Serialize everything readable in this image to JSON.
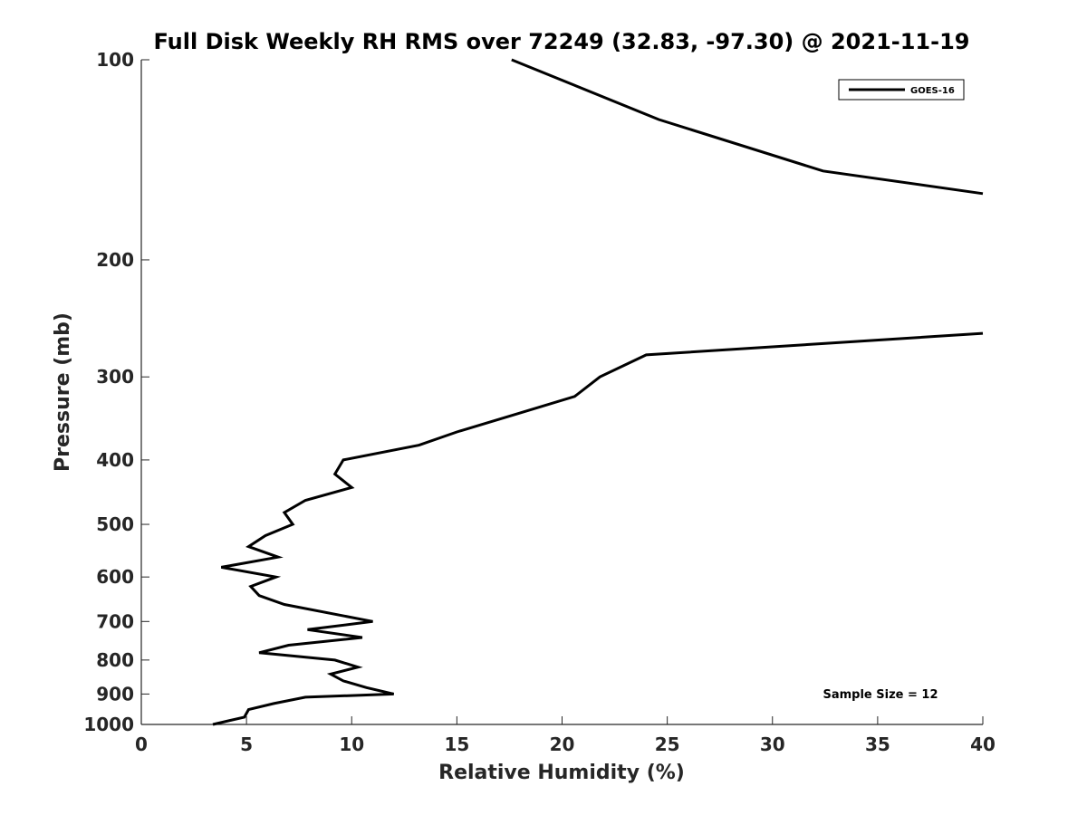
{
  "chart_data": {
    "type": "line",
    "title": "Full Disk Weekly RH RMS over 72249 (32.83, -97.30) @ 2021-11-19",
    "xlabel": "Relative Humidity (%)",
    "ylabel": "Pressure (mb)",
    "xlim": [
      0,
      40
    ],
    "ylim": [
      100,
      1000
    ],
    "y_scale": "log",
    "y_reversed": true,
    "grid": false,
    "x_ticks": [
      0,
      5,
      10,
      15,
      20,
      25,
      30,
      35,
      40
    ],
    "y_ticks": [
      100,
      200,
      300,
      400,
      500,
      600,
      700,
      800,
      900,
      1000
    ],
    "legend": {
      "position": "top-right",
      "entries": [
        "GOES-16"
      ]
    },
    "annotation": "Sample Size = 12",
    "series": [
      {
        "name": "GOES-16",
        "color": "#000000",
        "segments": [
          [
            {
              "x": 17.6,
              "p": 100
            },
            {
              "x": 24.6,
              "p": 123
            },
            {
              "x": 32.4,
              "p": 147
            },
            {
              "x": 40.0,
              "p": 159
            }
          ],
          [
            {
              "x": 40.0,
              "p": 258
            },
            {
              "x": 24.0,
              "p": 278
            },
            {
              "x": 21.8,
              "p": 300
            },
            {
              "x": 20.6,
              "p": 321
            },
            {
              "x": 18.0,
              "p": 340
            },
            {
              "x": 15.0,
              "p": 363
            },
            {
              "x": 13.2,
              "p": 380
            },
            {
              "x": 9.6,
              "p": 400
            },
            {
              "x": 9.2,
              "p": 420
            },
            {
              "x": 10.0,
              "p": 440
            },
            {
              "x": 7.8,
              "p": 460
            },
            {
              "x": 6.8,
              "p": 480
            },
            {
              "x": 7.2,
              "p": 500
            },
            {
              "x": 5.9,
              "p": 520
            },
            {
              "x": 5.1,
              "p": 540
            },
            {
              "x": 6.5,
              "p": 560
            },
            {
              "x": 3.8,
              "p": 580
            },
            {
              "x": 6.4,
              "p": 600
            },
            {
              "x": 5.2,
              "p": 620
            },
            {
              "x": 5.6,
              "p": 640
            },
            {
              "x": 6.8,
              "p": 660
            },
            {
              "x": 11.0,
              "p": 700
            },
            {
              "x": 7.9,
              "p": 720
            },
            {
              "x": 10.5,
              "p": 740
            },
            {
              "x": 7.0,
              "p": 760
            },
            {
              "x": 5.6,
              "p": 780
            },
            {
              "x": 9.2,
              "p": 800
            },
            {
              "x": 10.3,
              "p": 820
            },
            {
              "x": 9.0,
              "p": 840
            },
            {
              "x": 9.6,
              "p": 860
            },
            {
              "x": 10.7,
              "p": 880
            },
            {
              "x": 12.0,
              "p": 900
            },
            {
              "x": 7.8,
              "p": 910
            },
            {
              "x": 6.3,
              "p": 930
            },
            {
              "x": 5.1,
              "p": 950
            },
            {
              "x": 4.9,
              "p": 975
            },
            {
              "x": 3.4,
              "p": 1000
            }
          ]
        ]
      }
    ]
  }
}
